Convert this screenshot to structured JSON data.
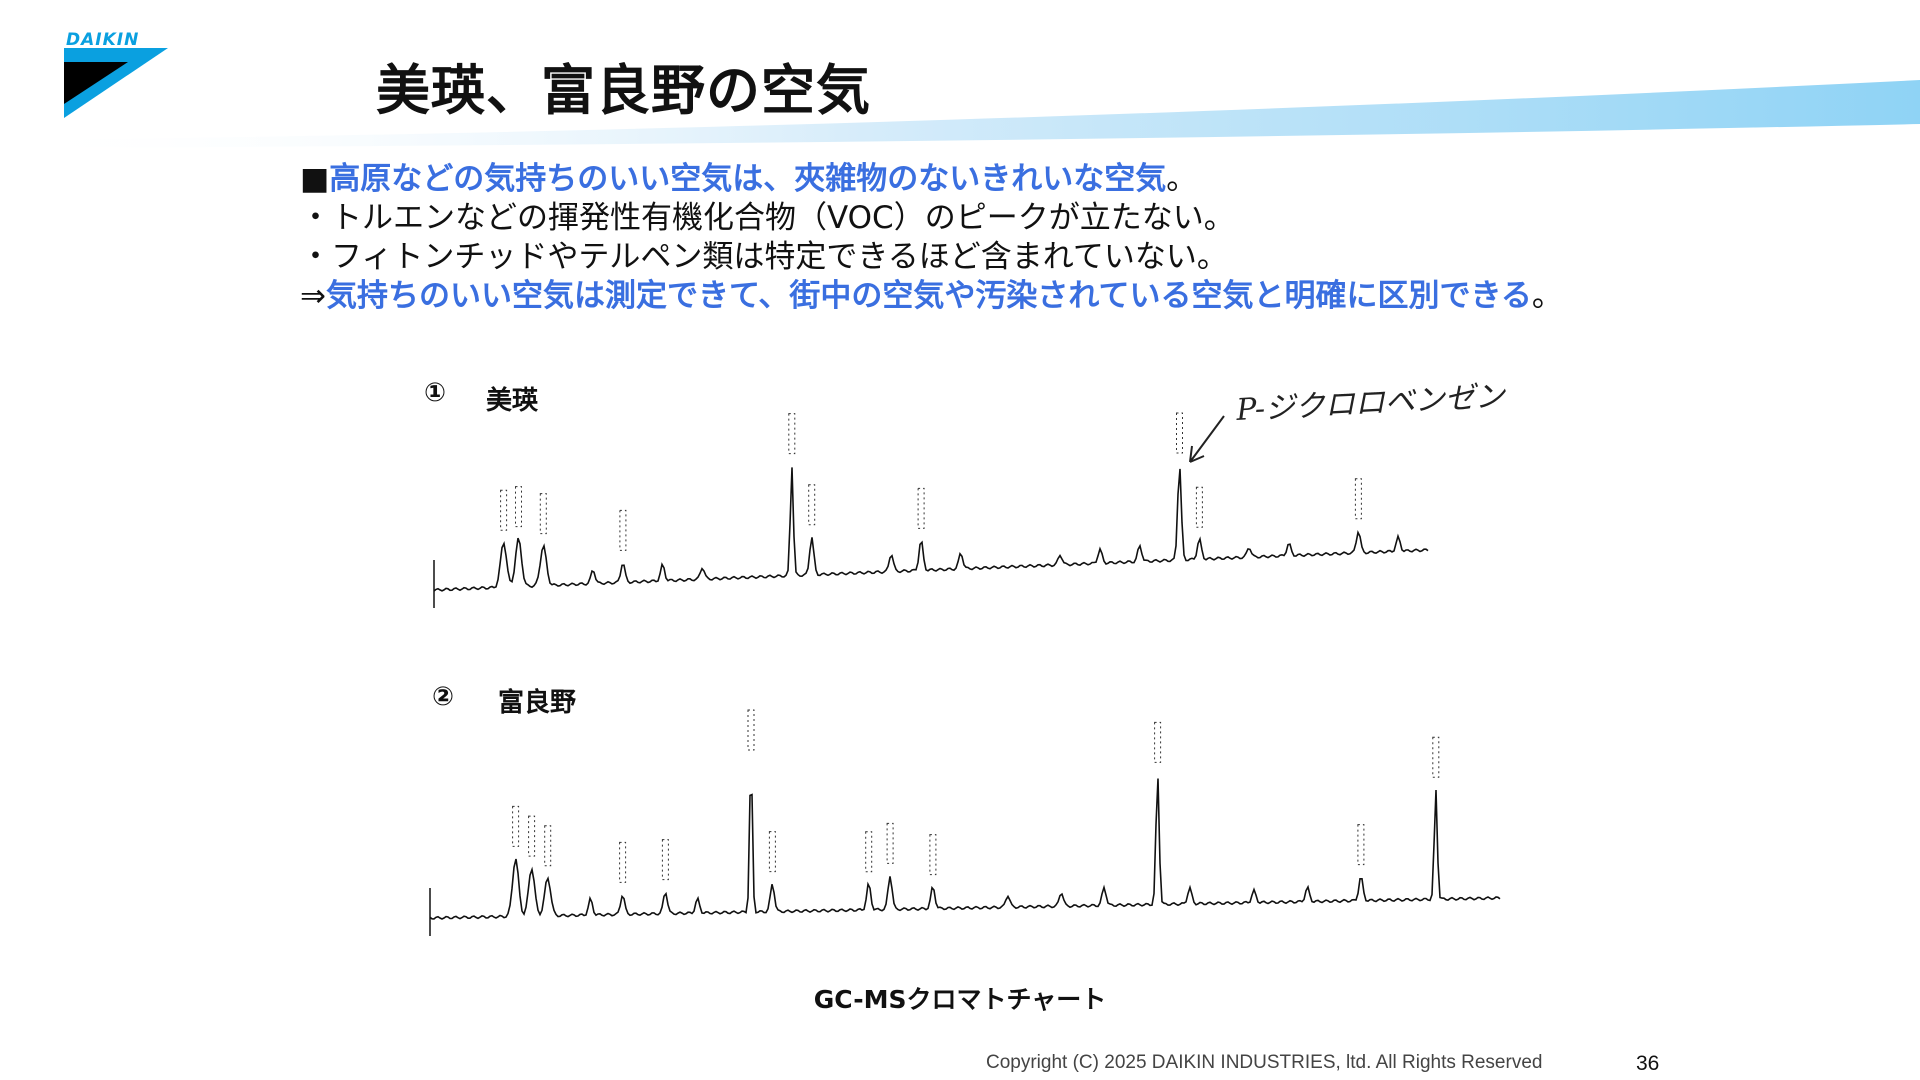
{
  "logo": {
    "text": "DAIKIN",
    "color": "#0aa0e0"
  },
  "title": "美瑛、富良野の空気",
  "bullets": [
    {
      "marker": "■",
      "text": "高原などの気持ちのいい空気は、夾雑物のないきれいな空気",
      "suffix": "。",
      "style": "blue"
    },
    {
      "marker": "・",
      "text": "トルエンなどの揮発性有機化合物（VOC）のピークが立たない。",
      "suffix": "",
      "style": "plain"
    },
    {
      "marker": "・",
      "text": "フィトンチッドやテルペン類は特定できるほど含まれていない。",
      "suffix": "",
      "style": "plain"
    },
    {
      "marker": "⇒",
      "text": "気持ちのいい空気は測定できて、街中の空気や汚染されている空気と明確に区別できる",
      "suffix": "。",
      "style": "blue"
    }
  ],
  "chart_data": [
    {
      "type": "line",
      "label_num": "①",
      "label": "美瑛",
      "annotation": "P-ジクロロベンゼン",
      "peaks": [
        0.06,
        0.2,
        0.22,
        0.25,
        0.32,
        0.35,
        0.38,
        0.43,
        0.47,
        0.52,
        0.57,
        0.65,
        0.72,
        0.76,
        0.82,
        0.88,
        0.93,
        0.97
      ]
    },
    {
      "type": "line",
      "label_num": "②",
      "label": "富良野"
    }
  ],
  "caption": "GC-MSクロマトチャート",
  "copyright": "Copyright (C) 2025 DAIKIN INDUSTRIES, ltd. All Rights Reserved",
  "page_number": "36"
}
